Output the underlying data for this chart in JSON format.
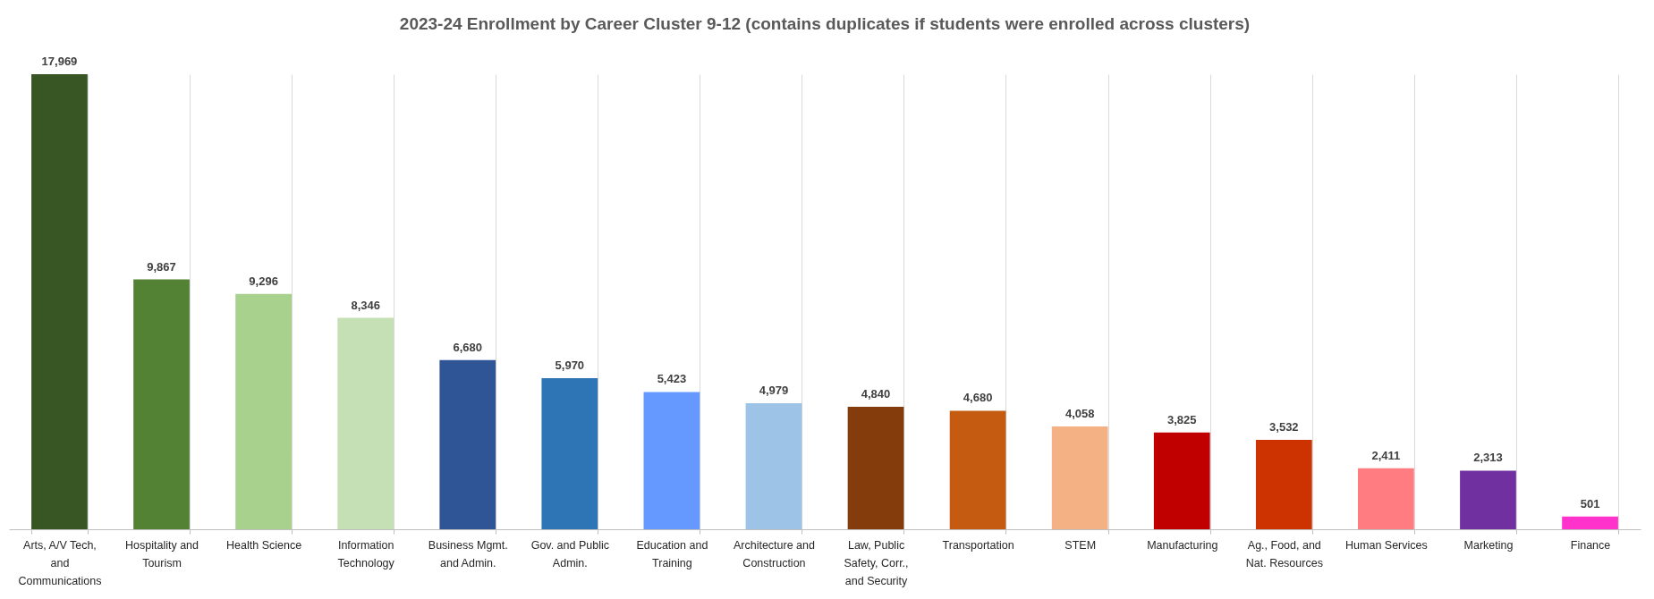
{
  "chart_data": {
    "type": "bar",
    "title": "2023-24 Enrollment by Career Cluster 9-12 (contains duplicates if students were enrolled across clusters)",
    "categories": [
      "Arts, A/V Tech, and Communications",
      "Hospitality and Tourism",
      "Health Science",
      "Information Technology",
      "Business Mgmt. and Admin.",
      "Gov. and Public Admin.",
      "Education and Training",
      "Architecture and Construction",
      "Law, Public Safety, Corr., and Security",
      "Transportation",
      "STEM",
      "Manufacturing",
      "Ag., Food, and Nat. Resources",
      "Human Services",
      "Marketing",
      "Finance"
    ],
    "values": [
      17969,
      9867,
      9296,
      8346,
      6680,
      5970,
      5423,
      4979,
      4840,
      4680,
      4058,
      3825,
      3532,
      2411,
      2313,
      501
    ],
    "colors": [
      "#375623",
      "#548235",
      "#a9d18e",
      "#c5e0b4",
      "#2f5597",
      "#2e75b6",
      "#6699ff",
      "#9dc3e6",
      "#843c0c",
      "#c55a11",
      "#f4b183",
      "#c00000",
      "#cc3300",
      "#ff7c80",
      "#7030a0",
      "#ff33cc"
    ],
    "value_labels": [
      "17,969",
      "9,867",
      "9,296",
      "8,346",
      "6,680",
      "5,970",
      "5,423",
      "4,979",
      "4,840",
      "4,680",
      "4,058",
      "3,825",
      "3,532",
      "2,411",
      "2,313",
      "501"
    ],
    "grid": "x"
  }
}
